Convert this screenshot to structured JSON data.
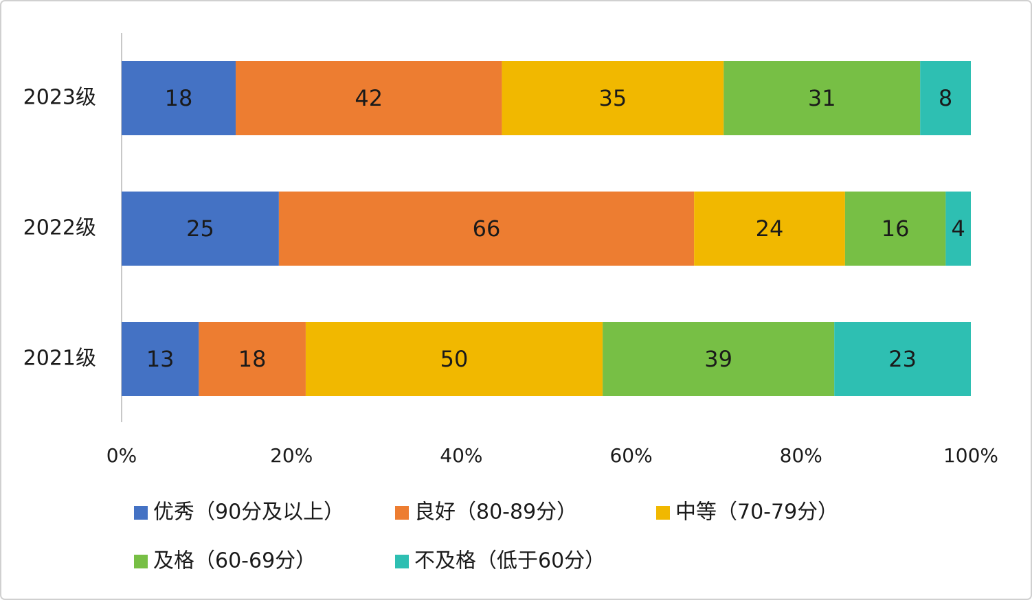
{
  "chart_data": {
    "type": "bar",
    "orientation": "horizontal",
    "stacked": "percent",
    "categories": [
      "2023级",
      "2022级",
      "2021级"
    ],
    "series": [
      {
        "name": "优秀（90分及以上）",
        "color": "#4472c4",
        "values": [
          18,
          25,
          13
        ]
      },
      {
        "name": "良好（80-89分）",
        "color": "#ed7d31",
        "values": [
          42,
          66,
          18
        ]
      },
      {
        "name": "中等（70-79分）",
        "color": "#f1b800",
        "values": [
          35,
          24,
          50
        ]
      },
      {
        "name": "及格（60-69分）",
        "color": "#77bf45",
        "values": [
          31,
          16,
          39
        ]
      },
      {
        "name": "不及格（低于60分）",
        "color": "#2ebfb2",
        "values": [
          8,
          4,
          23
        ]
      }
    ],
    "xlim": [
      0,
      100
    ],
    "xticks": [
      {
        "value": 0,
        "label": "0%"
      },
      {
        "value": 20,
        "label": "20%"
      },
      {
        "value": 40,
        "label": "40%"
      },
      {
        "value": 60,
        "label": "60%"
      },
      {
        "value": 80,
        "label": "80%"
      },
      {
        "value": 100,
        "label": "100%"
      }
    ],
    "grid": false,
    "legend": "bottom"
  }
}
